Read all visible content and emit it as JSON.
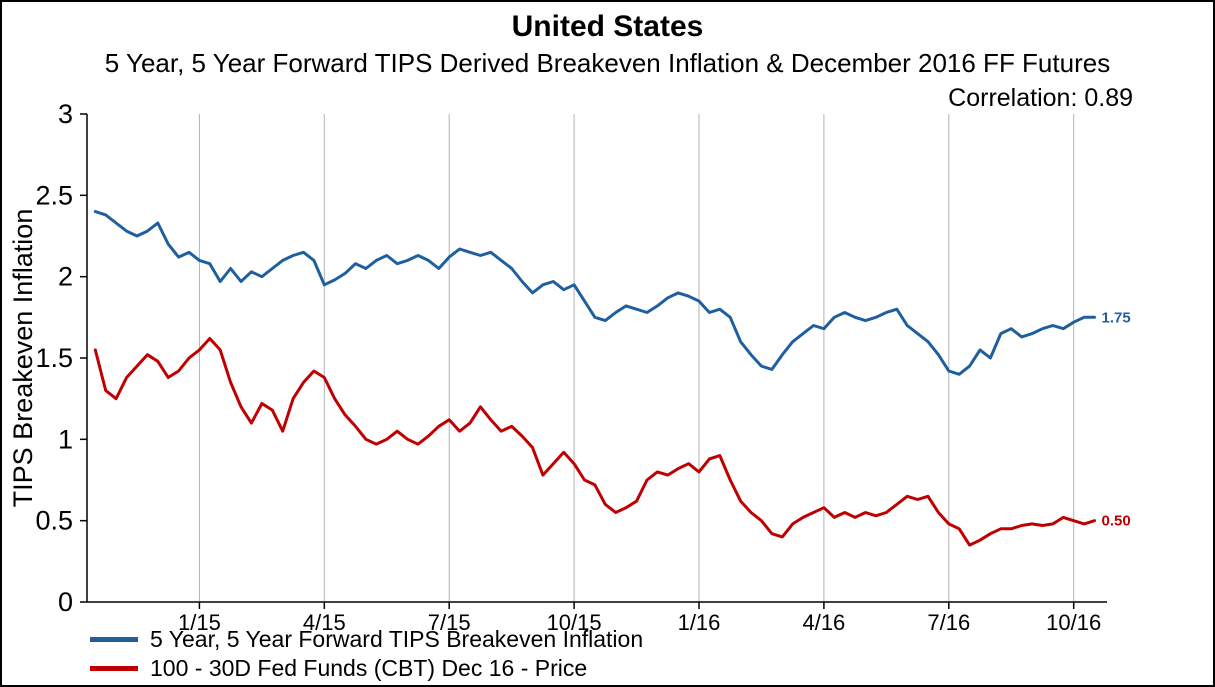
{
  "header": {
    "title": "United States",
    "subtitle": "5 Year, 5 Year Forward TIPS Derived Breakeven Inflation & December 2016 FF Futures",
    "correlation": "Correlation: 0.89"
  },
  "legend": [
    {
      "label": "5 Year, 5 Year Forward TIPS Breakeven Inflation",
      "color": "#1f5f9e"
    },
    {
      "label": "100 - 30D Fed Funds (CBT) Dec 16 - Price",
      "color": "#c00000"
    }
  ],
  "chart_data": {
    "type": "line",
    "title": "United States",
    "subtitle": "5 Year, 5 Year Forward TIPS Derived Breakeven Inflation & December 2016 FF Futures",
    "annotation": "Correlation: 0.89",
    "xlabel": "",
    "ylabel": "TIPS Breakeven Inflation",
    "xlim": [
      0.3,
      24.8
    ],
    "ylim": [
      0,
      3
    ],
    "grid": "vertical-only",
    "grid_color": "#b3b3b3",
    "legend_position": "bottom-left",
    "x_unit": "months since Oct 2014",
    "x_ticks": [
      {
        "m": 3,
        "label": "1/15"
      },
      {
        "m": 6,
        "label": "4/15"
      },
      {
        "m": 9,
        "label": "7/15"
      },
      {
        "m": 12,
        "label": "10/15"
      },
      {
        "m": 15,
        "label": "1/16"
      },
      {
        "m": 18,
        "label": "4/16"
      },
      {
        "m": 21,
        "label": "7/16"
      },
      {
        "m": 24,
        "label": "10/16"
      }
    ],
    "y_ticks": [
      {
        "v": 0,
        "label": "0"
      },
      {
        "v": 0.5,
        "label": "0.5"
      },
      {
        "v": 1,
        "label": "1"
      },
      {
        "v": 1.5,
        "label": "1.5"
      },
      {
        "v": 2,
        "label": "2"
      },
      {
        "v": 2.5,
        "label": "2.5"
      },
      {
        "v": 3,
        "label": "3"
      }
    ],
    "series": [
      {
        "name": "tips-breakeven-series",
        "label": "5 Year, 5 Year Forward TIPS Breakeven Inflation",
        "color": "#1f5f9e",
        "end_label": "1.75",
        "x_start": 0.5,
        "x_step": 0.25,
        "values": [
          2.4,
          2.38,
          2.33,
          2.28,
          2.25,
          2.28,
          2.33,
          2.2,
          2.12,
          2.15,
          2.1,
          2.08,
          1.97,
          2.05,
          1.97,
          2.03,
          2.0,
          2.05,
          2.1,
          2.13,
          2.15,
          2.1,
          1.95,
          1.98,
          2.02,
          2.08,
          2.05,
          2.1,
          2.13,
          2.08,
          2.1,
          2.13,
          2.1,
          2.05,
          2.12,
          2.17,
          2.15,
          2.13,
          2.15,
          2.1,
          2.05,
          1.97,
          1.9,
          1.95,
          1.97,
          1.92,
          1.95,
          1.85,
          1.75,
          1.73,
          1.78,
          1.82,
          1.8,
          1.78,
          1.82,
          1.87,
          1.9,
          1.88,
          1.85,
          1.78,
          1.8,
          1.75,
          1.6,
          1.52,
          1.45,
          1.43,
          1.52,
          1.6,
          1.65,
          1.7,
          1.68,
          1.75,
          1.78,
          1.75,
          1.73,
          1.75,
          1.78,
          1.8,
          1.7,
          1.65,
          1.6,
          1.52,
          1.42,
          1.4,
          1.45,
          1.55,
          1.5,
          1.65,
          1.68,
          1.63,
          1.65,
          1.68,
          1.7,
          1.68,
          1.72,
          1.75,
          1.75
        ]
      },
      {
        "name": "fed-funds-futures-series",
        "label": "100 - 30D Fed Funds (CBT) Dec 16 - Price",
        "color": "#c00000",
        "end_label": "0.50",
        "x_start": 0.5,
        "x_step": 0.25,
        "values": [
          1.55,
          1.3,
          1.25,
          1.38,
          1.45,
          1.52,
          1.48,
          1.38,
          1.42,
          1.5,
          1.55,
          1.62,
          1.55,
          1.35,
          1.2,
          1.1,
          1.22,
          1.18,
          1.05,
          1.25,
          1.35,
          1.42,
          1.38,
          1.25,
          1.15,
          1.08,
          1.0,
          0.97,
          1.0,
          1.05,
          1.0,
          0.97,
          1.02,
          1.08,
          1.12,
          1.05,
          1.1,
          1.2,
          1.12,
          1.05,
          1.08,
          1.02,
          0.95,
          0.78,
          0.85,
          0.92,
          0.85,
          0.75,
          0.72,
          0.6,
          0.55,
          0.58,
          0.62,
          0.75,
          0.8,
          0.78,
          0.82,
          0.85,
          0.8,
          0.88,
          0.9,
          0.75,
          0.62,
          0.55,
          0.5,
          0.42,
          0.4,
          0.48,
          0.52,
          0.55,
          0.58,
          0.52,
          0.55,
          0.52,
          0.55,
          0.53,
          0.55,
          0.6,
          0.65,
          0.63,
          0.65,
          0.55,
          0.48,
          0.45,
          0.35,
          0.38,
          0.42,
          0.45,
          0.45,
          0.47,
          0.48,
          0.47,
          0.48,
          0.52,
          0.5,
          0.48,
          0.5
        ]
      }
    ]
  }
}
